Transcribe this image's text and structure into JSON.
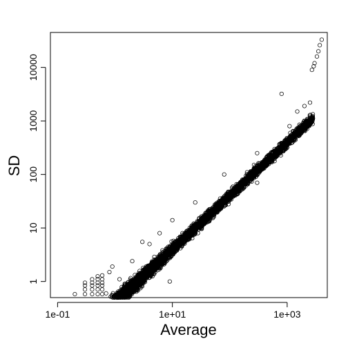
{
  "chart_data": {
    "type": "scatter",
    "title": "",
    "xlabel": "Average",
    "ylabel": "SD",
    "x_scale": "log10",
    "y_scale": "log10",
    "xlim": [
      0.075,
      5000
    ],
    "ylim": [
      0.5,
      45000
    ],
    "x_ticks": [
      {
        "value": 0.1,
        "label": "1e-01"
      },
      {
        "value": 10,
        "label": "1e+01"
      },
      {
        "value": 1000,
        "label": "1e+03"
      }
    ],
    "y_ticks": [
      {
        "value": 1,
        "label": "1"
      },
      {
        "value": 10,
        "label": "10"
      },
      {
        "value": 100,
        "label": "100"
      },
      {
        "value": 1000,
        "label": "1000"
      },
      {
        "value": 10000,
        "label": "10000"
      }
    ],
    "grid": false,
    "legend": "none",
    "marker": "open-circle",
    "colors": {
      "points": "#000000",
      "axes": "#000000",
      "background": "#ffffff"
    },
    "series": [
      {
        "points": [
          [
            0.1,
            0.32
          ],
          [
            0.2,
            0.45
          ],
          [
            0.2,
            0.58
          ],
          [
            0.2,
            0.45
          ],
          [
            0.3,
            0.45
          ],
          [
            0.3,
            0.58
          ],
          [
            0.3,
            0.71
          ],
          [
            0.3,
            0.84
          ],
          [
            0.3,
            0.95
          ],
          [
            0.4,
            0.45
          ],
          [
            0.4,
            0.58
          ],
          [
            0.4,
            0.71
          ],
          [
            0.4,
            0.84
          ],
          [
            0.4,
            0.95
          ],
          [
            0.4,
            1.1
          ],
          [
            0.5,
            0.45
          ],
          [
            0.5,
            0.58
          ],
          [
            0.5,
            0.71
          ],
          [
            0.5,
            0.84
          ],
          [
            0.5,
            0.95
          ],
          [
            0.5,
            1.1
          ],
          [
            0.5,
            1.25
          ],
          [
            0.6,
            0.58
          ],
          [
            0.6,
            0.71
          ],
          [
            0.6,
            0.84
          ],
          [
            0.6,
            0.95
          ],
          [
            0.6,
            1.1
          ],
          [
            0.6,
            1.3
          ],
          [
            0.7,
            0.4
          ],
          [
            0.7,
            0.6
          ],
          [
            0.8,
            1.5
          ],
          [
            0.9,
            1.9
          ],
          [
            1.2,
            1.1
          ],
          [
            1.5,
            0.9
          ],
          [
            2.0,
            2.4
          ],
          [
            2.6,
            0.85
          ],
          [
            4.0,
            5.0
          ],
          [
            9.0,
            1.0
          ],
          [
            11.0,
            3.5
          ],
          [
            3.0,
            5.5
          ],
          [
            6.0,
            8.0
          ],
          [
            10.0,
            14.0
          ],
          [
            15,
            8
          ],
          [
            25,
            30
          ],
          [
            30,
            10
          ],
          [
            60,
            20
          ],
          [
            80,
            100
          ],
          [
            100,
            40
          ],
          [
            200,
            110
          ],
          [
            300,
            70
          ],
          [
            300,
            250
          ],
          [
            800,
            3200
          ],
          [
            1100,
            800
          ],
          [
            1500,
            1500
          ],
          [
            2000,
            1900
          ],
          [
            2500,
            2200
          ],
          [
            3000,
            12000
          ],
          [
            3300,
            16000
          ],
          [
            3500,
            20000
          ],
          [
            3700,
            26000
          ],
          [
            4000,
            33000
          ],
          [
            2700,
            9000
          ],
          [
            2900,
            10500
          ]
        ]
      }
    ]
  }
}
